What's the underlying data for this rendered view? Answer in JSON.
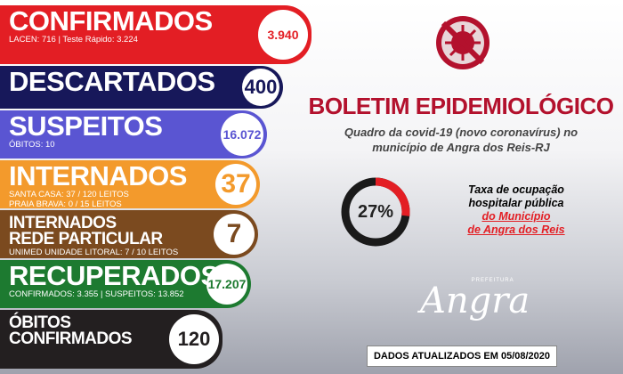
{
  "panels": [
    {
      "title": [
        "CONFIRMADOS"
      ],
      "details": [
        "LACEN: 716 | Teste Rápido: 3.224"
      ],
      "count": "3.940",
      "color": "#e31e24"
    },
    {
      "title": [
        "DESCARTADOS"
      ],
      "details": [],
      "count": "400",
      "color": "#17185a"
    },
    {
      "title": [
        "SUSPEITOS"
      ],
      "details": [
        "ÓBITOS: 10"
      ],
      "count": "16.072",
      "color": "#5a55d2"
    },
    {
      "title": [
        "INTERNADOS"
      ],
      "details": [
        "SANTA CASA: 37 / 120 LEITOS",
        "PRAIA BRAVA: 0 / 15 LEITOS"
      ],
      "count": "37",
      "color": "#f39a2c"
    },
    {
      "title": [
        "INTERNADOS",
        "REDE PARTICULAR"
      ],
      "details": [
        "UNIMED UNIDADE LITORAL: 7 / 10 LEITOS"
      ],
      "count": "7",
      "color": "#7b4a1f"
    },
    {
      "title": [
        "RECUPERADOS"
      ],
      "details": [
        "CONFIRMADOS: 3.355 | SUSPEITOS: 13.852"
      ],
      "count": "17.207",
      "color": "#1d7a30"
    },
    {
      "title": [
        "ÓBITOS",
        "CONFIRMADOS"
      ],
      "details": [],
      "count": "120",
      "color": "#231f20"
    }
  ],
  "header": {
    "title": "BOLETIM EPIDEMIOLÓGICO",
    "subtitle": [
      "Quadro da covid-19 (novo coronavírus) no",
      "município de Angra dos Reis-RJ"
    ]
  },
  "occupancy": {
    "value": 27,
    "label": "27%",
    "text": [
      "Taxa de ocupação",
      "hospitalar pública"
    ],
    "highlight": [
      "do Município",
      "de Angra dos Reis"
    ]
  },
  "logo": {
    "small": "PREFEITURA",
    "name": "Angra"
  },
  "footer": "DADOS ATUALIZADOS EM 05/08/2020"
}
